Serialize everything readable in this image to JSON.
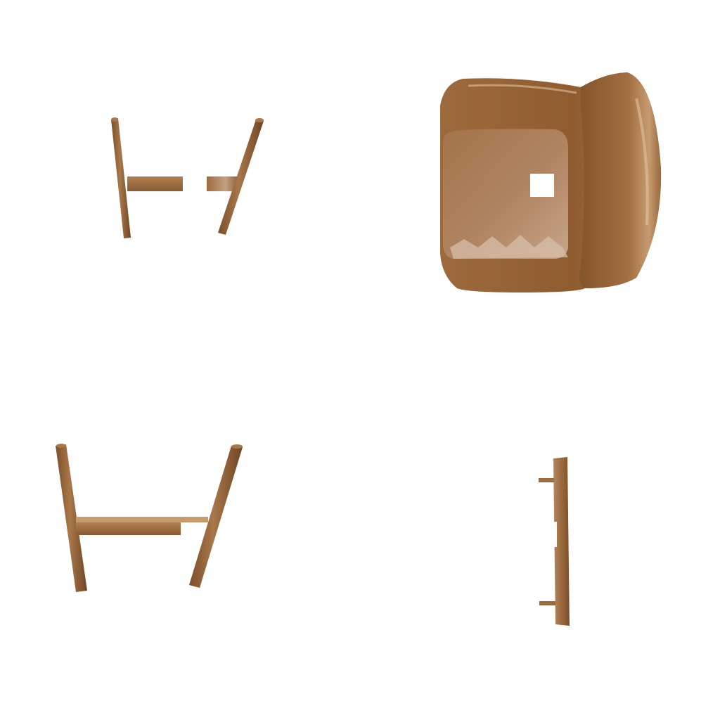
{
  "scene": {
    "description_free": true,
    "background_color": "#ffffff",
    "material_color": "#9b6a3e",
    "material_highlight": "#c49a72",
    "material_shadow": "#7a4f2a",
    "parts": [
      {
        "id": "leg-frame-small",
        "icon": "chair-leg-frame"
      },
      {
        "id": "seat-shell",
        "icon": "chair-seat-shell"
      },
      {
        "id": "leg-frame-large",
        "icon": "chair-leg-frame"
      },
      {
        "id": "side-rail",
        "icon": "chair-side-rail"
      }
    ]
  }
}
